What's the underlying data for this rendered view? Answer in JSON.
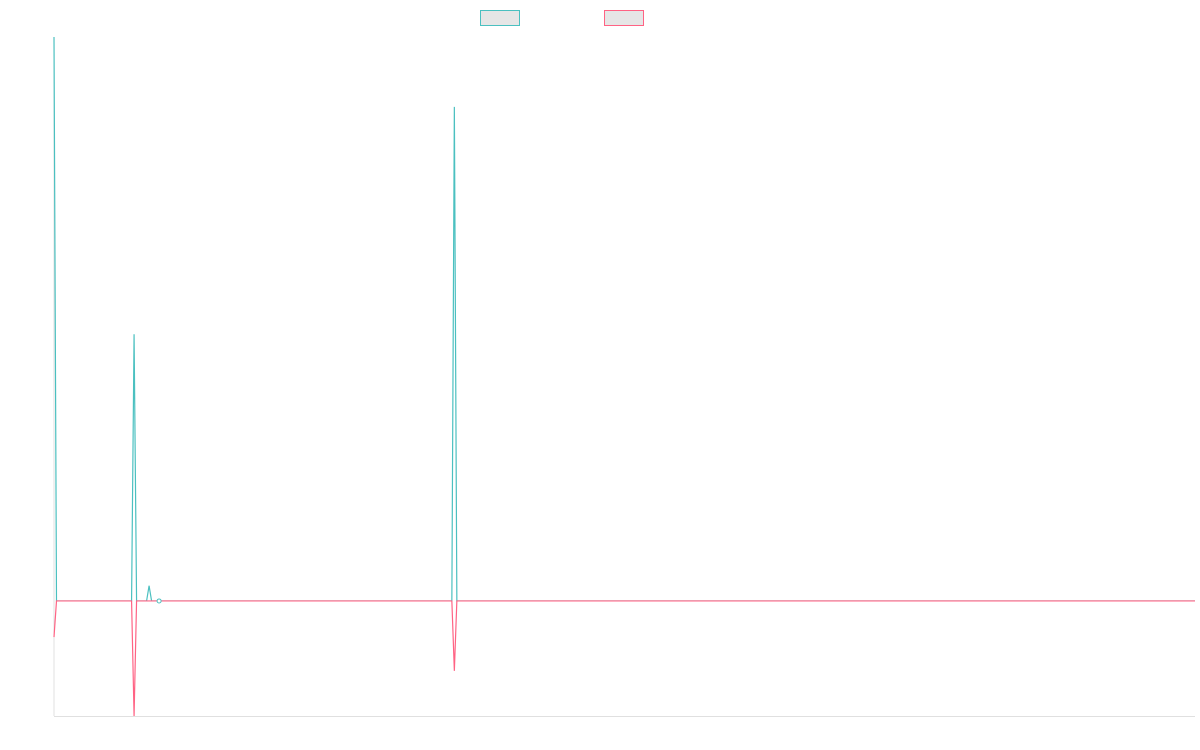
{
  "chart_data": {
    "type": "line",
    "title": "",
    "xlabel": "",
    "ylabel": "",
    "x_count": 457,
    "xlim": [
      0,
      456
    ],
    "ylim": [
      -20.4,
      100
    ],
    "grid": false,
    "legend": "top-center",
    "series": [
      {
        "color": "#4bc0c0",
        "legend_fill": "#e6e6e6",
        "points": [
          [
            0,
            100
          ],
          [
            32,
            47.3
          ],
          [
            38,
            2.7
          ],
          [
            160,
            87.6
          ]
        ]
      },
      {
        "color": "#ff6384",
        "legend_fill": "#e6e6e6",
        "points": [
          [
            0,
            -6.4
          ],
          [
            32,
            -20.4
          ],
          [
            160,
            -12.4
          ]
        ]
      }
    ],
    "highlighted_point_index": 42,
    "axis_color": "#e0e0e0"
  }
}
